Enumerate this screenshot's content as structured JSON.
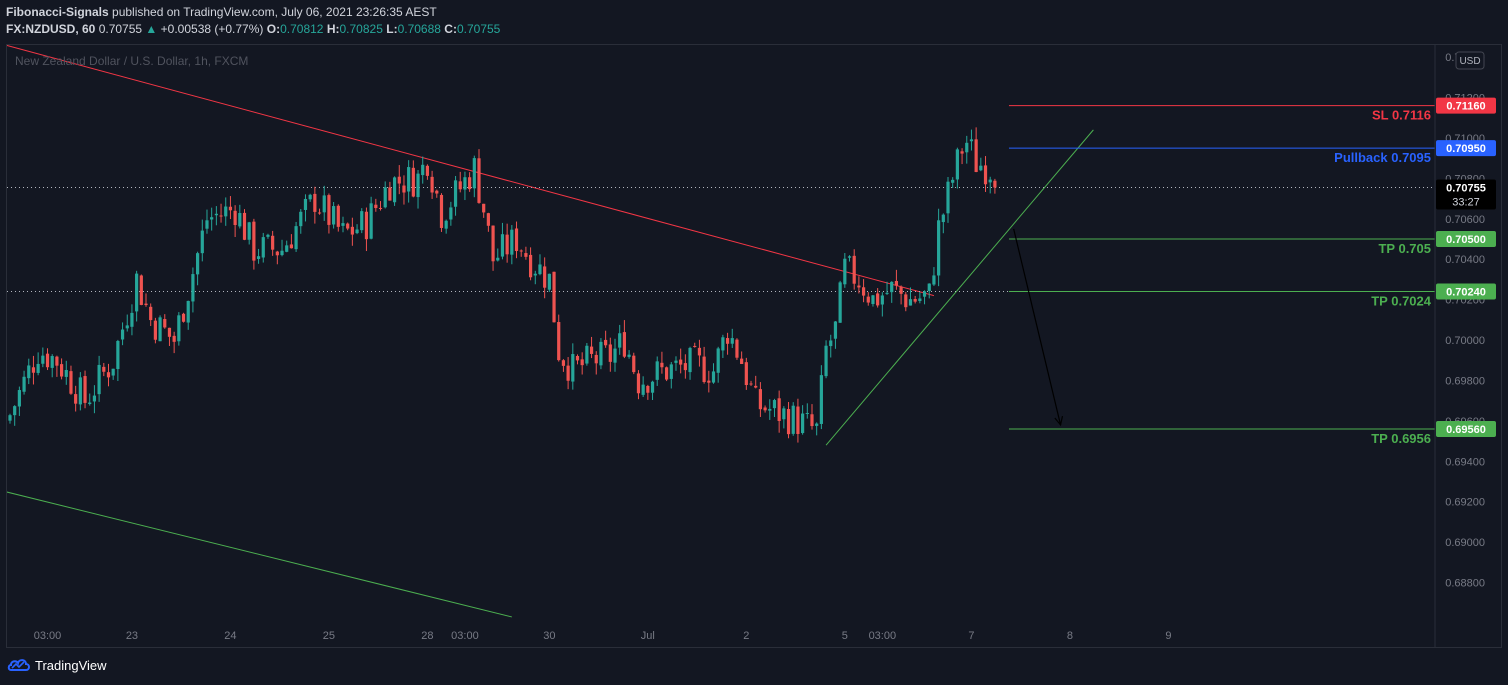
{
  "header": {
    "publisher": "Fibonacci-Signals",
    "published_text": " published on TradingView.com, July 06, 2021 23:26:35 AEST",
    "symbol": "FX:NZDUSD, 60",
    "last": "0.70755",
    "change": "+0.00538 (+0.77%)",
    "o_label": "O:",
    "o_value": "0.70812",
    "h_label": "H:",
    "h_value": "0.70825",
    "l_label": "L:",
    "l_value": "0.70688",
    "c_label": "C:",
    "c_value": "0.70755"
  },
  "chart": {
    "instrument_label": "New Zealand Dollar / U.S. Dollar, 1h, FXCM",
    "currency_badge": "USD",
    "countdown": "33:27"
  },
  "footer": {
    "brand": "TradingView"
  },
  "colors": {
    "background": "#131722",
    "up": "#26a69a",
    "candle_up": "#26a69a",
    "candle_down": "#ef5350",
    "sl": "#f23645",
    "pullback": "#2962ff",
    "tp": "#4caf50",
    "price_tag": "#000000"
  },
  "chart_data": {
    "type": "candlestick",
    "title": "New Zealand Dollar / U.S. Dollar, 1h, FXCM",
    "ylim": [
      0.686,
      0.7146
    ],
    "y_ticks": [
      0.714,
      0.712,
      0.71,
      0.708,
      0.706,
      0.704,
      0.702,
      0.7,
      0.698,
      0.696,
      0.694,
      0.692,
      0.69,
      0.688
    ],
    "x_labels": [
      "03:00",
      "23",
      "24",
      "25",
      "28",
      "03:00",
      "30",
      "Jul",
      "2",
      "5",
      "03:00",
      "7",
      "8",
      "9"
    ],
    "x_ticks": [
      {
        "label": "03:00",
        "bar": 8
      },
      {
        "label": "23",
        "bar": 26
      },
      {
        "label": "24",
        "bar": 47
      },
      {
        "label": "25",
        "bar": 68
      },
      {
        "label": "28",
        "bar": 89
      },
      {
        "label": "03:00",
        "bar": 97
      },
      {
        "label": "30",
        "bar": 115
      },
      {
        "label": "Jul",
        "bar": 136
      },
      {
        "label": "2",
        "bar": 157
      },
      {
        "label": "5",
        "bar": 178
      },
      {
        "label": "03:00",
        "bar": 186
      },
      {
        "label": "7",
        "bar": 205
      },
      {
        "label": "8",
        "bar": 226
      },
      {
        "label": "9",
        "bar": 247
      }
    ],
    "waypoints": [
      {
        "bar": 0,
        "price": 0.6963
      },
      {
        "bar": 6,
        "price": 0.6995
      },
      {
        "bar": 10,
        "price": 0.699
      },
      {
        "bar": 16,
        "price": 0.697
      },
      {
        "bar": 22,
        "price": 0.699
      },
      {
        "bar": 27,
        "price": 0.703
      },
      {
        "bar": 30,
        "price": 0.701
      },
      {
        "bar": 35,
        "price": 0.7
      },
      {
        "bar": 38,
        "price": 0.7025
      },
      {
        "bar": 42,
        "price": 0.706
      },
      {
        "bar": 48,
        "price": 0.7065
      },
      {
        "bar": 52,
        "price": 0.7045
      },
      {
        "bar": 58,
        "price": 0.7045
      },
      {
        "bar": 65,
        "price": 0.707
      },
      {
        "bar": 71,
        "price": 0.7052
      },
      {
        "bar": 76,
        "price": 0.7058
      },
      {
        "bar": 81,
        "price": 0.7078
      },
      {
        "bar": 87,
        "price": 0.708
      },
      {
        "bar": 89,
        "price": 0.709
      },
      {
        "bar": 92,
        "price": 0.7063
      },
      {
        "bar": 95,
        "price": 0.7072
      },
      {
        "bar": 99,
        "price": 0.7085
      },
      {
        "bar": 101,
        "price": 0.7065
      },
      {
        "bar": 103,
        "price": 0.704
      },
      {
        "bar": 108,
        "price": 0.705
      },
      {
        "bar": 111,
        "price": 0.704
      },
      {
        "bar": 115,
        "price": 0.703
      },
      {
        "bar": 117,
        "price": 0.6995
      },
      {
        "bar": 120,
        "price": 0.6985
      },
      {
        "bar": 124,
        "price": 0.699
      },
      {
        "bar": 128,
        "price": 0.6992
      },
      {
        "bar": 131,
        "price": 0.7
      },
      {
        "bar": 134,
        "price": 0.698
      },
      {
        "bar": 140,
        "price": 0.6985
      },
      {
        "bar": 146,
        "price": 0.6988
      },
      {
        "bar": 150,
        "price": 0.6985
      },
      {
        "bar": 153,
        "price": 0.7005
      },
      {
        "bar": 156,
        "price": 0.699
      },
      {
        "bar": 159,
        "price": 0.6968
      },
      {
        "bar": 163,
        "price": 0.6965
      },
      {
        "bar": 168,
        "price": 0.696
      },
      {
        "bar": 172,
        "price": 0.6955
      },
      {
        "bar": 174,
        "price": 0.6995
      },
      {
        "bar": 176,
        "price": 0.7005
      },
      {
        "bar": 178,
        "price": 0.7035
      },
      {
        "bar": 181,
        "price": 0.703
      },
      {
        "bar": 184,
        "price": 0.702
      },
      {
        "bar": 188,
        "price": 0.7025
      },
      {
        "bar": 192,
        "price": 0.702
      },
      {
        "bar": 196,
        "price": 0.7022
      },
      {
        "bar": 198,
        "price": 0.7055
      },
      {
        "bar": 201,
        "price": 0.708
      },
      {
        "bar": 203,
        "price": 0.7095
      },
      {
        "bar": 204,
        "price": 0.7098
      },
      {
        "bar": 206,
        "price": 0.7088
      },
      {
        "bar": 209,
        "price": 0.7085
      },
      {
        "bar": 210,
        "price": 0.70755
      }
    ],
    "current_price": 0.70755,
    "levels": [
      {
        "name": "SL",
        "label": "SL 0.7116",
        "tag": "0.71160",
        "price": 0.7116,
        "color": "#f23645"
      },
      {
        "name": "Pullback",
        "label": "Pullback 0.7095",
        "tag": "0.70950",
        "price": 0.7095,
        "color": "#2962ff"
      },
      {
        "name": "TP1",
        "label": "TP 0.705",
        "tag": "0.70500",
        "price": 0.705,
        "color": "#4caf50"
      },
      {
        "name": "TP2",
        "label": "TP 0.7024",
        "tag": "0.70240",
        "price": 0.7024,
        "color": "#4caf50"
      },
      {
        "name": "TP3",
        "label": "TP 0.6956",
        "tag": "0.69560",
        "price": 0.6956,
        "color": "#4caf50"
      }
    ],
    "dotted_levels": [
      0.70755,
      0.7024
    ],
    "trendlines": [
      {
        "name": "descending-resistance",
        "color": "#f23645",
        "from": {
          "bar": -1,
          "price": 0.7146
        },
        "to": {
          "bar": 197,
          "price": 0.7022
        }
      },
      {
        "name": "ascending-support",
        "color": "#4caf50",
        "from": {
          "bar": 174,
          "price": 0.6948
        },
        "to": {
          "bar": 231,
          "price": 0.7104
        }
      },
      {
        "name": "lower-channel",
        "color": "#4caf50",
        "from": {
          "bar": -1,
          "price": 0.6925
        },
        "to": {
          "bar": 107,
          "price": 0.6863
        }
      }
    ],
    "arrow": {
      "from": {
        "bar": 214,
        "price": 0.7055
      },
      "to": {
        "bar": 224,
        "price": 0.6958
      }
    },
    "grid": false,
    "axis_position": "right"
  }
}
